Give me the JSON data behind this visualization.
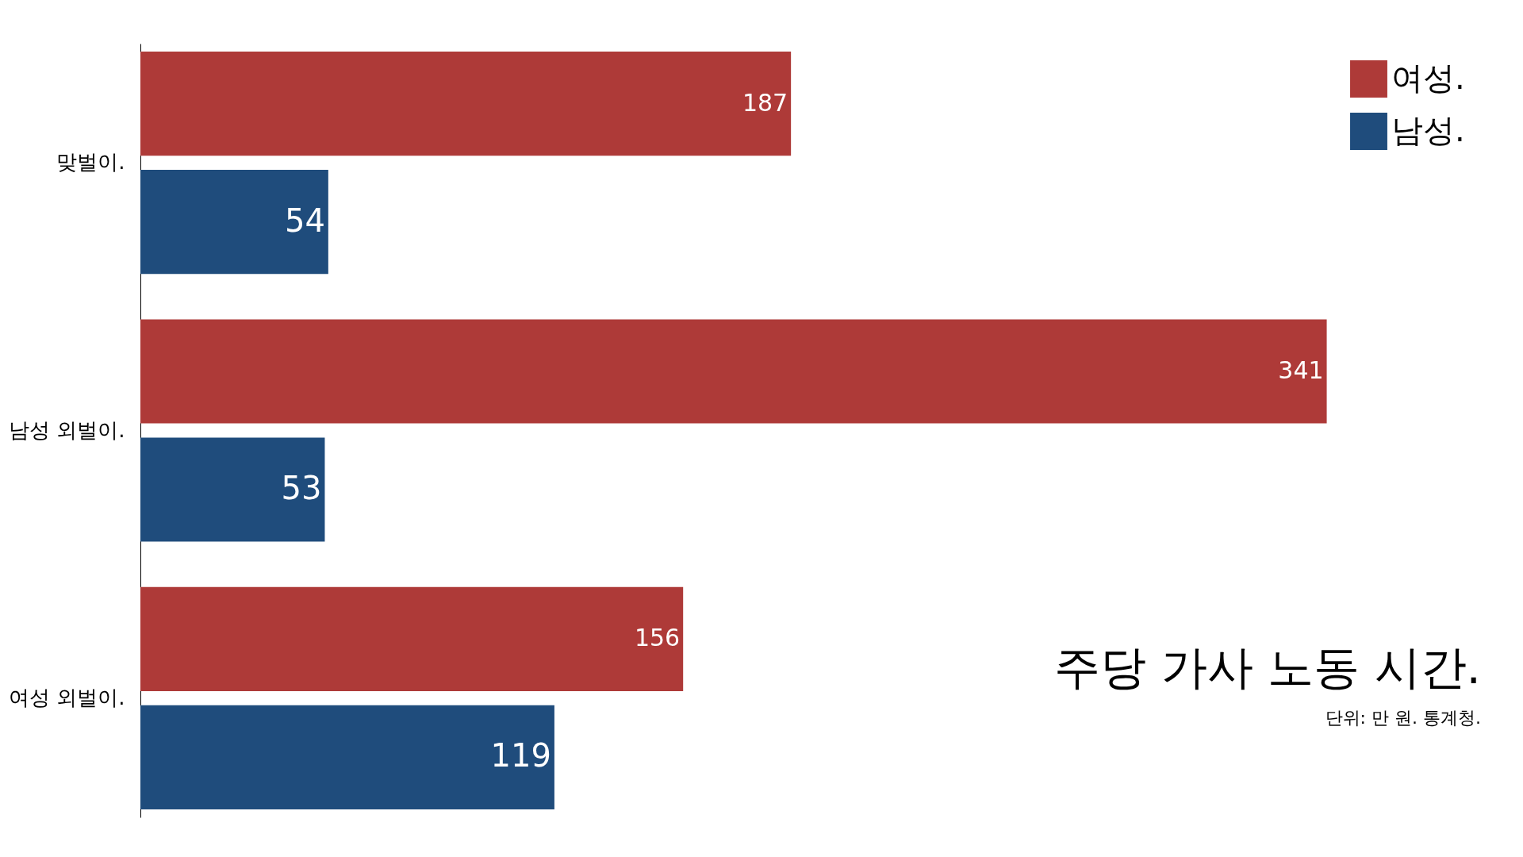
{
  "chart_data": {
    "type": "bar",
    "orientation": "horizontal",
    "title": "주당 가사 노동 시간.",
    "annotations": [
      "단위: 만 원. 통계청."
    ],
    "categories": [
      "맞벌이.",
      "남성 외벌이.",
      "여성 외벌이."
    ],
    "series": [
      {
        "name": "여성.",
        "color": "#ae3a38",
        "values": [
          187,
          341,
          156
        ]
      },
      {
        "name": "남성.",
        "color": "#1f4c7c",
        "values": [
          54,
          53,
          119
        ]
      }
    ],
    "data_labels": true,
    "legend": "top right",
    "grid": false
  }
}
